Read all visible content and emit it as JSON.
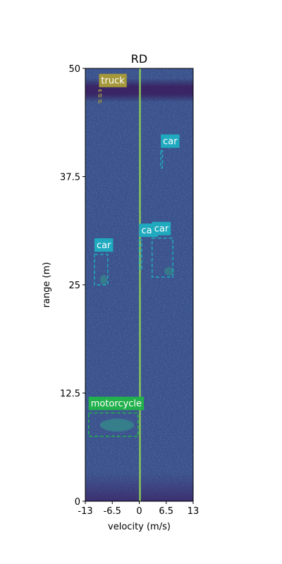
{
  "chart_data": {
    "type": "heatmap",
    "title": "RD",
    "xlabel": "velocity (m/s)",
    "ylabel": "range (m)",
    "xlim": [
      -13,
      13
    ],
    "ylim": [
      0,
      50
    ],
    "xticks": [
      "-13",
      "-6.5",
      "0",
      "6.5",
      "13"
    ],
    "xtick_values": [
      -13,
      -6.5,
      0,
      6.5,
      13
    ],
    "yticks": [
      "0",
      "12.5",
      "25",
      "37.5",
      "50"
    ],
    "ytick_values": [
      0,
      12.5,
      25,
      37.5,
      50
    ],
    "colormap": "viridis",
    "grid": false,
    "background_color": "#3b4f8c",
    "detections": [
      {
        "label": "truck",
        "color": "#a5993b",
        "v_min": -9.7,
        "v_max": -9.2,
        "r_min": 46.0,
        "r_max": 47.5
      },
      {
        "label": "car",
        "color": "#20aabf",
        "v_min": 5.2,
        "v_max": 5.6,
        "r_min": 38.5,
        "r_max": 40.5
      },
      {
        "label": "car",
        "color": "#20aabf",
        "v_min": 0.0,
        "v_max": 0.6,
        "r_min": 26.8,
        "r_max": 30.2
      },
      {
        "label": "car",
        "color": "#20aabf",
        "v_min": 3.1,
        "v_max": 8.1,
        "r_min": 25.9,
        "r_max": 30.4
      },
      {
        "label": "car",
        "color": "#20aabf",
        "v_min": -10.8,
        "v_max": -7.6,
        "r_min": 25.0,
        "r_max": 28.5
      },
      {
        "label": "motorcycle",
        "color": "#22b14c",
        "v_min": -12.2,
        "v_max": -0.3,
        "r_min": 7.5,
        "r_max": 10.2
      }
    ]
  }
}
